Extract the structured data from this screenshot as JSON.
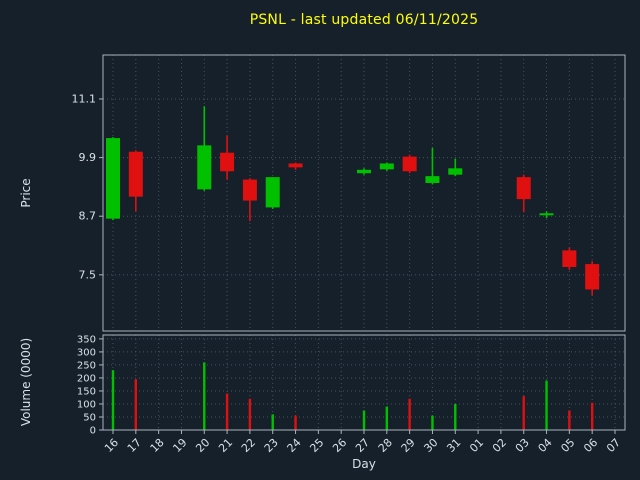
{
  "title": "PSNL - last updated 06/11/2025",
  "colors": {
    "background": "#15202b",
    "title": "#ffff00",
    "text": "#d9e0e6",
    "grid": "#46525e",
    "spine": "#aab4be",
    "up": "#00c000",
    "down": "#e01010"
  },
  "chart_data": [
    {
      "type": "candlestick",
      "panel": "price",
      "ylabel": "Price",
      "yticks": [
        11.1,
        9.9,
        8.7,
        7.5
      ],
      "ylim": [
        6.35,
        12.0
      ],
      "grid": "dotted",
      "days": [
        "16",
        "17",
        "18",
        "19",
        "20",
        "21",
        "22",
        "23",
        "24",
        "25",
        "26",
        "27",
        "28",
        "29",
        "30",
        "31",
        "01",
        "02",
        "03",
        "04",
        "05",
        "06",
        "07"
      ],
      "candles": [
        {
          "day": "16",
          "open": 8.65,
          "high": 10.32,
          "low": 8.62,
          "close": 10.3
        },
        {
          "day": "17",
          "open": 10.02,
          "high": 10.05,
          "low": 8.8,
          "close": 9.1
        },
        {
          "day": "20",
          "open": 9.25,
          "high": 10.95,
          "low": 9.22,
          "close": 10.15
        },
        {
          "day": "21",
          "open": 10.0,
          "high": 10.35,
          "low": 9.45,
          "close": 9.62
        },
        {
          "day": "22",
          "open": 9.45,
          "high": 9.48,
          "low": 8.6,
          "close": 9.02
        },
        {
          "day": "23",
          "open": 8.88,
          "high": 9.5,
          "low": 8.85,
          "close": 9.5
        },
        {
          "day": "24",
          "open": 9.78,
          "high": 9.8,
          "low": 9.65,
          "close": 9.7
        },
        {
          "day": "27",
          "open": 9.58,
          "high": 9.68,
          "low": 9.55,
          "close": 9.65
        },
        {
          "day": "28",
          "open": 9.66,
          "high": 9.8,
          "low": 9.63,
          "close": 9.78
        },
        {
          "day": "29",
          "open": 9.92,
          "high": 9.96,
          "low": 9.58,
          "close": 9.62
        },
        {
          "day": "30",
          "open": 9.38,
          "high": 10.1,
          "low": 9.35,
          "close": 9.52
        },
        {
          "day": "31",
          "open": 9.55,
          "high": 9.88,
          "low": 9.52,
          "close": 9.68
        },
        {
          "day": "03",
          "open": 9.5,
          "high": 9.55,
          "low": 8.78,
          "close": 9.05
        },
        {
          "day": "04",
          "open": 8.72,
          "high": 8.8,
          "low": 8.66,
          "close": 8.76
        },
        {
          "day": "05",
          "open": 8.0,
          "high": 8.06,
          "low": 7.6,
          "close": 7.66
        },
        {
          "day": "06",
          "open": 7.72,
          "high": 7.78,
          "low": 7.08,
          "close": 7.2
        }
      ]
    },
    {
      "type": "bar",
      "panel": "volume",
      "ylabel": "Volume (0000)",
      "xlabel": "Day",
      "yticks": [
        350,
        300,
        250,
        200,
        150,
        100,
        50,
        0
      ],
      "ylim": [
        0,
        365
      ],
      "grid": "dotted",
      "volumes": [
        {
          "day": "16",
          "value": 230,
          "direction": "up"
        },
        {
          "day": "17",
          "value": 195,
          "direction": "down"
        },
        {
          "day": "20",
          "value": 260,
          "direction": "up"
        },
        {
          "day": "21",
          "value": 140,
          "direction": "down"
        },
        {
          "day": "22",
          "value": 120,
          "direction": "down"
        },
        {
          "day": "23",
          "value": 60,
          "direction": "up"
        },
        {
          "day": "24",
          "value": 55,
          "direction": "down"
        },
        {
          "day": "27",
          "value": 75,
          "direction": "up"
        },
        {
          "day": "28",
          "value": 90,
          "direction": "up"
        },
        {
          "day": "29",
          "value": 120,
          "direction": "down"
        },
        {
          "day": "30",
          "value": 55,
          "direction": "up"
        },
        {
          "day": "31",
          "value": 100,
          "direction": "up"
        },
        {
          "day": "03",
          "value": 130,
          "direction": "down"
        },
        {
          "day": "04",
          "value": 190,
          "direction": "up"
        },
        {
          "day": "05",
          "value": 75,
          "direction": "down"
        },
        {
          "day": "06",
          "value": 105,
          "direction": "down"
        }
      ]
    }
  ]
}
